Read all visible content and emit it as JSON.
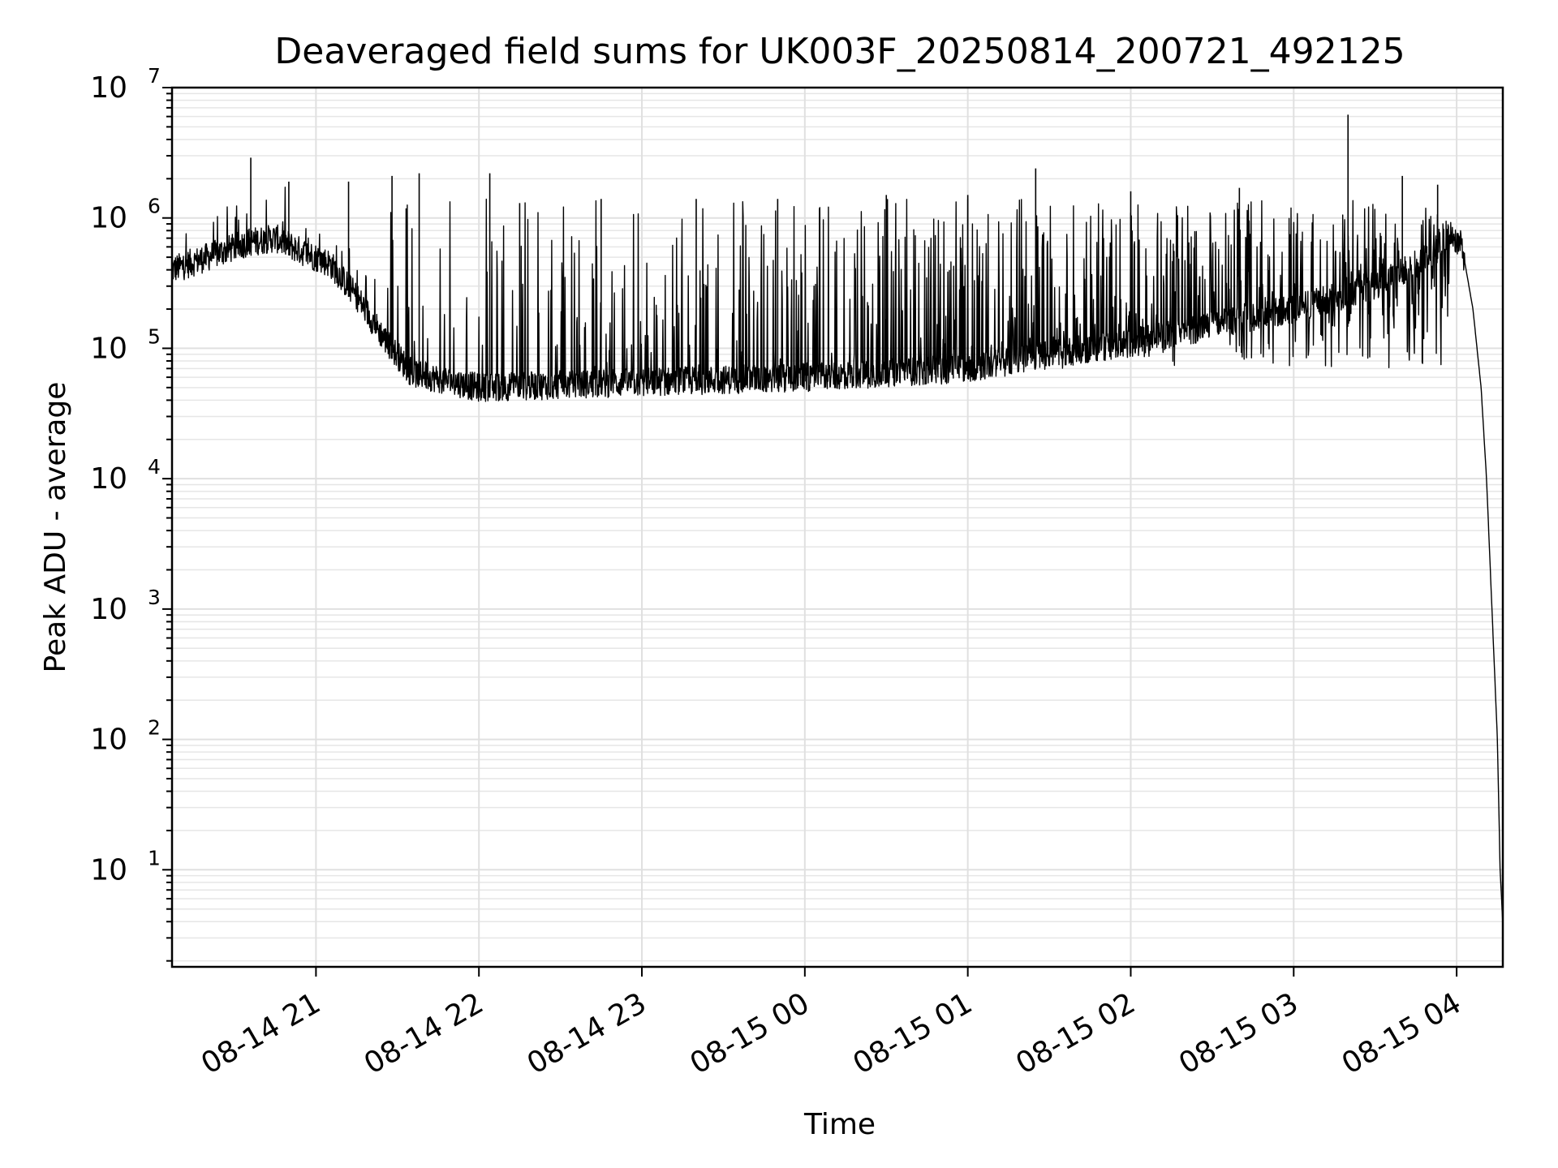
{
  "chart_data": {
    "type": "line",
    "title": "Deaveraged field sums for UK003F_20250814_200721_492125",
    "xlabel": "Time",
    "ylabel": "Peak ADU - average",
    "yscale": "log",
    "grid": true,
    "xlim": [
      "2025-08-14 20:07",
      "2025-08-15 04:17"
    ],
    "ylim": [
      1.8,
      10000000
    ],
    "x_ticks": [
      "08-14 21",
      "08-14 22",
      "08-14 23",
      "08-15 00",
      "08-15 01",
      "08-15 02",
      "08-15 03",
      "08-15 04"
    ],
    "x_tick_values": [
      "2025-08-14 21:00",
      "2025-08-14 22:00",
      "2025-08-14 23:00",
      "2025-08-15 00:00",
      "2025-08-15 01:00",
      "2025-08-15 02:00",
      "2025-08-15 03:00",
      "2025-08-15 04:00"
    ],
    "y_ticks": [
      {
        "value": 10,
        "base": "10",
        "exp": "1"
      },
      {
        "value": 100,
        "base": "10",
        "exp": "2"
      },
      {
        "value": 1000,
        "base": "10",
        "exp": "3"
      },
      {
        "value": 10000,
        "base": "10",
        "exp": "4"
      },
      {
        "value": 100000,
        "base": "10",
        "exp": "5"
      },
      {
        "value": 1000000,
        "base": "10",
        "exp": "6"
      },
      {
        "value": 10000000,
        "base": "10",
        "exp": "7"
      }
    ],
    "series": [
      {
        "color": "#000000",
        "baseline": [
          [
            "2025-08-14 20:07",
            400000
          ],
          [
            "2025-08-14 20:20",
            500000
          ],
          [
            "2025-08-14 20:35",
            650000
          ],
          [
            "2025-08-14 20:45",
            700000
          ],
          [
            "2025-08-14 20:55",
            550000
          ],
          [
            "2025-08-14 21:05",
            450000
          ],
          [
            "2025-08-14 21:15",
            250000
          ],
          [
            "2025-08-14 21:25",
            120000
          ],
          [
            "2025-08-14 21:35",
            65000
          ],
          [
            "2025-08-14 22:00",
            50000
          ],
          [
            "2025-08-14 23:00",
            55000
          ],
          [
            "2025-08-15 00:00",
            60000
          ],
          [
            "2025-08-15 01:00",
            70000
          ],
          [
            "2025-08-15 01:30",
            90000
          ],
          [
            "2025-08-15 02:00",
            110000
          ],
          [
            "2025-08-15 02:30",
            150000
          ],
          [
            "2025-08-15 03:00",
            200000
          ],
          [
            "2025-08-15 03:30",
            300000
          ],
          [
            "2025-08-15 03:50",
            500000
          ],
          [
            "2025-08-15 03:58",
            750000
          ],
          [
            "2025-08-15 04:02",
            600000
          ],
          [
            "2025-08-15 04:06",
            200000
          ],
          [
            "2025-08-15 04:09",
            50000
          ],
          [
            "2025-08-15 04:11",
            10000
          ],
          [
            "2025-08-15 04:13",
            1000
          ],
          [
            "2025-08-15 04:15",
            100
          ],
          [
            "2025-08-15 04:16",
            10
          ],
          [
            "2025-08-15 04:17",
            3.8
          ]
        ],
        "spikes": [
          [
            "2025-08-14 20:36",
            2900000
          ],
          [
            "2025-08-14 20:50",
            1900000
          ],
          [
            "2025-08-14 21:12",
            1900000
          ],
          [
            "2025-08-14 21:28",
            2100000
          ],
          [
            "2025-08-14 21:38",
            2200000
          ],
          [
            "2025-08-14 22:04",
            2200000
          ],
          [
            "2025-08-14 22:15",
            1300000
          ],
          [
            "2025-08-14 22:45",
            1400000
          ],
          [
            "2025-08-14 23:20",
            1400000
          ],
          [
            "2025-08-14 23:50",
            1400000
          ],
          [
            "2025-08-15 00:30",
            1500000
          ],
          [
            "2025-08-15 01:00",
            1500000
          ],
          [
            "2025-08-15 01:25",
            2400000
          ],
          [
            "2025-08-15 02:00",
            1600000
          ],
          [
            "2025-08-15 02:40",
            1700000
          ],
          [
            "2025-08-15 03:20",
            6200000
          ],
          [
            "2025-08-15 03:40",
            2100000
          ],
          [
            "2025-08-15 03:53",
            1800000
          ]
        ]
      }
    ]
  }
}
